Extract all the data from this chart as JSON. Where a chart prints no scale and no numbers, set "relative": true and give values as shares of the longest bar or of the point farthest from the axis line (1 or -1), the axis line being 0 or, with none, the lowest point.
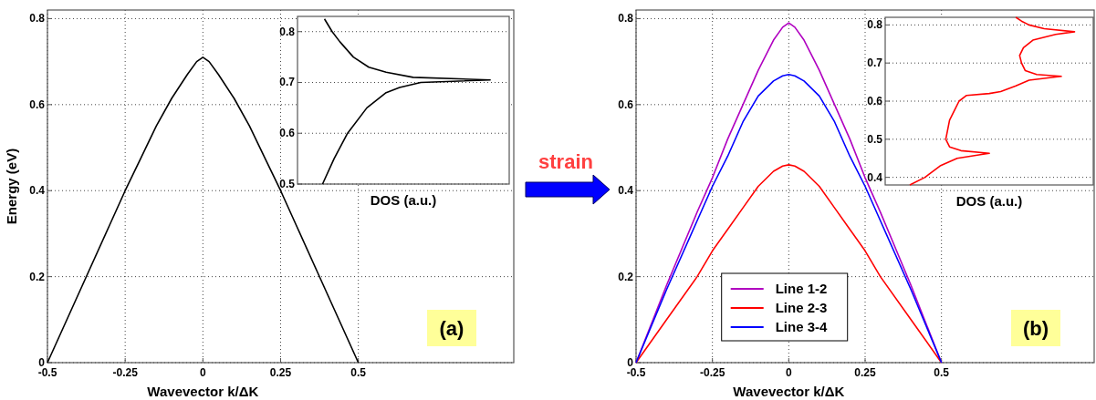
{
  "chart_data": [
    {
      "type": "line",
      "xlabel": "Wavevector k/ΔK",
      "ylabel": "Energy (eV)",
      "annotations": [
        "(a)"
      ],
      "color": "#000000",
      "x": [
        -0.5,
        -0.4,
        -0.3,
        -0.25,
        -0.2,
        -0.15,
        -0.1,
        -0.05,
        -0.02,
        0,
        0.02,
        0.05,
        0.1,
        0.15,
        0.2,
        0.25,
        0.3,
        0.4,
        0.5
      ],
      "values": [
        0,
        0.16,
        0.32,
        0.4,
        0.475,
        0.55,
        0.615,
        0.67,
        0.7,
        0.71,
        0.7,
        0.67,
        0.615,
        0.55,
        0.475,
        0.4,
        0.32,
        0.16,
        0
      ],
      "xlim": [
        -0.5,
        1.0
      ],
      "ylim": [
        0,
        0.82
      ],
      "xticks": [
        -0.5,
        -0.25,
        0,
        0.25,
        0.5
      ],
      "yticks": [
        0,
        0.2,
        0.4,
        0.6,
        0.8
      ],
      "grid": true
    },
    {
      "type": "line",
      "orientation": "horizontal",
      "relative": true,
      "xlabel": "DOS (a.u.)",
      "color": "#000000",
      "x": [
        0.5,
        0.55,
        0.6,
        0.65,
        0.68,
        0.69,
        0.7,
        0.705,
        0.71,
        0.72,
        0.73,
        0.75,
        0.78,
        0.8,
        0.825
      ],
      "values": [
        0.13,
        0.19,
        0.26,
        0.36,
        0.46,
        0.53,
        0.64,
        1.0,
        0.6,
        0.46,
        0.37,
        0.29,
        0.22,
        0.18,
        0.14
      ],
      "ylim": [
        0.5,
        0.83
      ],
      "yticks": [
        0.5,
        0.6,
        0.7,
        0.8
      ],
      "grid": "y"
    },
    {
      "type": "line",
      "xlabel": "Wavevector k/ΔK",
      "annotations": [
        "(b)",
        "strain"
      ],
      "legend": "bottom",
      "x": [
        -0.5,
        -0.4,
        -0.3,
        -0.25,
        -0.2,
        -0.15,
        -0.1,
        -0.05,
        -0.02,
        0,
        0.02,
        0.05,
        0.1,
        0.15,
        0.2,
        0.25,
        0.3,
        0.4,
        0.5
      ],
      "series": [
        {
          "name": "Line 1-2",
          "color": "#b000c0",
          "values": [
            0,
            0.18,
            0.35,
            0.43,
            0.52,
            0.6,
            0.68,
            0.75,
            0.78,
            0.79,
            0.78,
            0.75,
            0.68,
            0.6,
            0.52,
            0.43,
            0.35,
            0.18,
            0
          ]
        },
        {
          "name": "Line 2-3",
          "color": "#ff0000",
          "values": [
            0,
            0.1,
            0.2,
            0.26,
            0.31,
            0.36,
            0.41,
            0.445,
            0.457,
            0.46,
            0.457,
            0.445,
            0.41,
            0.36,
            0.31,
            0.26,
            0.2,
            0.1,
            0
          ]
        },
        {
          "name": "Line 3-4",
          "color": "#0000ff",
          "values": [
            0,
            0.17,
            0.33,
            0.41,
            0.48,
            0.56,
            0.62,
            0.655,
            0.667,
            0.67,
            0.667,
            0.655,
            0.62,
            0.56,
            0.48,
            0.41,
            0.33,
            0.17,
            0
          ]
        }
      ],
      "xlim": [
        -0.5,
        1.0
      ],
      "ylim": [
        0,
        0.82
      ],
      "xticks": [
        -0.5,
        -0.25,
        0,
        0.25,
        0.5
      ],
      "yticks": [
        0,
        0.2,
        0.4,
        0.6,
        0.8
      ],
      "grid": true
    },
    {
      "type": "line",
      "orientation": "horizontal",
      "relative": true,
      "xlabel": "DOS (a.u.)",
      "color": "#ff0000",
      "x": [
        0.38,
        0.4,
        0.43,
        0.45,
        0.46,
        0.463,
        0.47,
        0.48,
        0.5,
        0.55,
        0.58,
        0.6,
        0.615,
        0.62,
        0.625,
        0.64,
        0.655,
        0.665,
        0.67,
        0.68,
        0.7,
        0.72,
        0.74,
        0.76,
        0.775,
        0.782,
        0.79,
        0.8,
        0.81,
        0.82
      ],
      "values": [
        0.13,
        0.21,
        0.29,
        0.38,
        0.51,
        0.55,
        0.4,
        0.34,
        0.32,
        0.34,
        0.37,
        0.39,
        0.43,
        0.55,
        0.61,
        0.69,
        0.76,
        0.93,
        0.8,
        0.74,
        0.72,
        0.71,
        0.73,
        0.78,
        0.9,
        1.0,
        0.84,
        0.76,
        0.72,
        0.69
      ],
      "ylim": [
        0.38,
        0.82
      ],
      "yticks": [
        0.4,
        0.5,
        0.6,
        0.7,
        0.8
      ],
      "grid": "y"
    }
  ]
}
